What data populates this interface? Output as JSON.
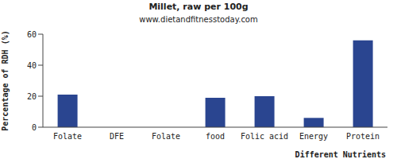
{
  "chart_data": {
    "type": "bar",
    "title": "Millet, raw per 100g",
    "subtitle": "www.dietandfitnesstoday.com",
    "x_label": "Different Nutrients",
    "y_label": "Percentage of RDH (%)",
    "categories": [
      "Folate",
      "DFE",
      "Folate",
      "food",
      "Folic acid",
      "Energy",
      "Protein"
    ],
    "values": [
      21,
      0,
      0,
      19,
      20,
      6,
      56
    ],
    "color": "#2a4590",
    "ylim": [
      0,
      60
    ],
    "yticks": [
      0,
      20,
      40,
      60
    ],
    "grid": false
  }
}
